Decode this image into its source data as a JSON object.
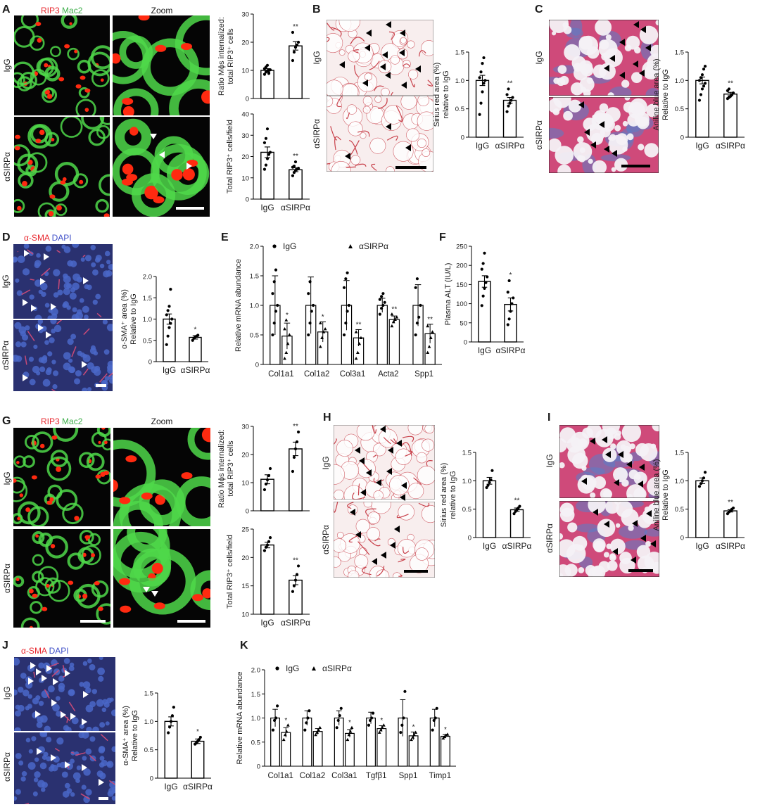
{
  "panels": {
    "A": {
      "letter": "A",
      "stain_parts": [
        "RIP3",
        "Mac2"
      ],
      "zoom": "Zoom",
      "row_labels": [
        "IgG",
        "αSIRPα"
      ]
    },
    "B": {
      "letter": "B",
      "row_labels": [
        "IgG",
        "αSIRPα"
      ]
    },
    "C": {
      "letter": "C",
      "row_labels": [
        "IgG",
        "αSIRPα"
      ]
    },
    "D": {
      "letter": "D",
      "stain_parts": [
        "α-SMA",
        "DAPI"
      ],
      "row_labels": [
        "IgG",
        "αSIRPα"
      ]
    },
    "E": {
      "letter": "E"
    },
    "F": {
      "letter": "F"
    },
    "G": {
      "letter": "G",
      "stain_parts": [
        "RIP3",
        "Mac2"
      ],
      "zoom": "Zoom",
      "row_labels": [
        "IgG",
        "αSIRPα"
      ]
    },
    "H": {
      "letter": "H",
      "row_labels": [
        "IgG",
        "αSIRPα"
      ]
    },
    "I": {
      "letter": "I",
      "row_labels": [
        "IgG",
        "αSIRPα"
      ]
    },
    "J": {
      "letter": "J",
      "stain_parts": [
        "α-SMA",
        "DAPI"
      ],
      "row_labels": [
        "IgG",
        "αSIRPα"
      ]
    },
    "K": {
      "letter": "K"
    }
  },
  "colors": {
    "red": "#e8262d",
    "green": "#3dae4a",
    "blue": "#3f4fc8",
    "text": "#1a1a1a",
    "fluor_bg": "#050505",
    "fluor_green": "#4fd84a",
    "fluor_red": "#ff2a10",
    "sirius_bg": "#f8eeee",
    "sirius_line": "#c8404a",
    "trichrome_bg": "#cf4a7a",
    "trichrome_blue": "#5a7ec8",
    "sma_bg": "#2a3170",
    "sma_nuc": "#4a67c8",
    "sma_red": "#c84a78"
  },
  "chart_data": [
    {
      "id": "A1",
      "type": "bar",
      "categories": [
        "IgG",
        "αSIRPα"
      ],
      "values": [
        10.0,
        18.7
      ],
      "errors": [
        0.6,
        1.5
      ],
      "points": [
        [
          8.6,
          9.4,
          9.8,
          10.0,
          10.2,
          10.6,
          11.2,
          11.8,
          8.9
        ],
        [
          13.5,
          16.5,
          18.2,
          19.0,
          20.0,
          23.5
        ]
      ],
      "ylabel_lines": [
        "Ratio Mϕs internalized:",
        "total RIP3⁺ cells"
      ],
      "ylim": [
        0,
        30
      ],
      "yticks": [
        0,
        10,
        20,
        30
      ],
      "significance": [
        "",
        "**"
      ],
      "markers": [
        "circle",
        "circle"
      ],
      "show_xlabels": false
    },
    {
      "id": "A2",
      "type": "bar",
      "categories": [
        "IgG",
        "αSIRPα"
      ],
      "values": [
        22.0,
        13.8
      ],
      "errors": [
        2.5,
        0.9
      ],
      "points": [
        [
          14.0,
          16.0,
          19.0,
          21.0,
          22.0,
          26.5,
          28.5,
          33.0
        ],
        [
          11.0,
          12.5,
          13.5,
          14.0,
          14.5,
          15.0,
          15.5,
          17.5
        ]
      ],
      "ylabel_lines": [
        "Total RIP3⁺ cells/field"
      ],
      "ylim": [
        0,
        40
      ],
      "yticks": [
        0,
        10,
        20,
        30,
        40
      ],
      "significance": [
        "",
        "**"
      ],
      "markers": [
        "circle",
        "circle"
      ],
      "show_xlabels": true
    },
    {
      "id": "B",
      "type": "bar",
      "categories": [
        "IgG",
        "αSIRPα"
      ],
      "values": [
        1.0,
        0.65
      ],
      "errors": [
        0.09,
        0.05
      ],
      "points": [
        [
          0.4,
          0.6,
          0.8,
          0.95,
          1.0,
          1.05,
          1.15,
          1.3,
          1.4
        ],
        [
          0.45,
          0.55,
          0.6,
          0.65,
          0.7,
          0.75,
          0.85
        ]
      ],
      "ylabel_lines": [
        "Sirius red area (%)",
        "relative to IgG"
      ],
      "ylim": [
        0,
        1.5
      ],
      "yticks": [
        0,
        0.5,
        1.0,
        1.5
      ],
      "significance": [
        "",
        "**"
      ],
      "markers": [
        "circle",
        "circle"
      ],
      "show_xlabels": true
    },
    {
      "id": "C",
      "type": "bar",
      "categories": [
        "IgG",
        "αSIRPα"
      ],
      "values": [
        1.0,
        0.76
      ],
      "errors": [
        0.06,
        0.03
      ],
      "points": [
        [
          0.65,
          0.75,
          0.85,
          0.9,
          0.95,
          1.0,
          1.05,
          1.1,
          1.2,
          1.25
        ],
        [
          0.68,
          0.7,
          0.72,
          0.75,
          0.78,
          0.82,
          0.85
        ]
      ],
      "ylabel_lines": [
        "Aniline blue area (%)",
        "Relative to IgG"
      ],
      "ylim": [
        0,
        1.5
      ],
      "yticks": [
        0,
        0.5,
        1.0,
        1.5
      ],
      "significance": [
        "",
        "**"
      ],
      "markers": [
        "circle",
        "circle"
      ],
      "show_xlabels": true
    },
    {
      "id": "D",
      "type": "bar",
      "categories": [
        "IgG",
        "αSIRPα"
      ],
      "values": [
        1.0,
        0.57
      ],
      "errors": [
        0.12,
        0.04
      ],
      "points": [
        [
          0.4,
          0.6,
          0.8,
          0.9,
          1.0,
          1.1,
          1.2,
          1.3,
          1.7
        ],
        [
          0.5,
          0.55,
          0.58,
          0.6,
          0.62
        ]
      ],
      "ylabel_lines": [
        "α-SMA⁺ area (%)",
        "Relative to IgG"
      ],
      "ylim": [
        0,
        2.0
      ],
      "yticks": [
        0,
        0.5,
        1.0,
        1.5,
        2.0
      ],
      "significance": [
        "",
        "*"
      ],
      "markers": [
        "circle",
        "circle"
      ],
      "show_xlabels": true
    },
    {
      "id": "E",
      "type": "bar",
      "categories": [
        "Col1a1",
        "Col1a2",
        "Col3a1",
        "Acta2",
        "Spp1"
      ],
      "series": [
        {
          "name": "IgG",
          "marker": "circle",
          "values": [
            1.0,
            1.0,
            1.0,
            1.0,
            1.0
          ],
          "errors": [
            0.5,
            0.48,
            0.42,
            0.12,
            0.35
          ],
          "points": [
            [
              0.5,
              0.7,
              0.9,
              1.0,
              1.2,
              1.4,
              1.6
            ],
            [
              0.5,
              0.7,
              0.9,
              1.0,
              1.2,
              1.4
            ],
            [
              0.5,
              0.7,
              0.9,
              1.0,
              1.3,
              1.45,
              1.55
            ],
            [
              0.85,
              0.95,
              1.0,
              1.05,
              1.1,
              1.15,
              1.2
            ],
            [
              0.5,
              0.7,
              0.8,
              1.0,
              1.3,
              1.45
            ]
          ]
        },
        {
          "name": "αSIRPα",
          "marker": "triangle",
          "values": [
            0.48,
            0.55,
            0.45,
            0.76,
            0.52
          ],
          "errors": [
            0.22,
            0.17,
            0.14,
            0.06,
            0.16
          ],
          "points": [
            [
              0.1,
              0.2,
              0.35,
              0.5,
              0.6,
              0.75
            ],
            [
              0.3,
              0.45,
              0.55,
              0.6,
              0.7
            ],
            [
              0.1,
              0.2,
              0.35,
              0.45,
              0.55
            ],
            [
              0.65,
              0.72,
              0.76,
              0.8,
              0.85
            ],
            [
              0.2,
              0.3,
              0.45,
              0.55,
              0.65
            ]
          ]
        }
      ],
      "ylabel_lines": [
        "Relative mRNA abundance"
      ],
      "ylim": [
        0,
        2.0
      ],
      "yticks": [
        0,
        0.5,
        1.0,
        1.5,
        2.0
      ],
      "significance": [
        "*",
        "*",
        "**",
        "**",
        "**"
      ],
      "legend_position": "top"
    },
    {
      "id": "F",
      "type": "bar",
      "categories": [
        "IgG",
        "αSIRPα"
      ],
      "values": [
        158,
        98
      ],
      "errors": [
        15,
        17
      ],
      "points": [
        [
          95,
          120,
          140,
          155,
          170,
          190,
          205,
          232
        ],
        [
          45,
          60,
          80,
          100,
          115,
          130,
          160
        ]
      ],
      "ylabel_lines": [
        "Plasma ALT (IU/L)"
      ],
      "ylim": [
        0,
        250
      ],
      "yticks": [
        0,
        50,
        100,
        150,
        200,
        250
      ],
      "significance": [
        "",
        "*"
      ],
      "markers": [
        "circle",
        "circle"
      ],
      "show_xlabels": true
    },
    {
      "id": "G1",
      "type": "bar",
      "categories": [
        "IgG",
        "αSIRPα"
      ],
      "values": [
        11.2,
        22.0
      ],
      "errors": [
        1.6,
        2.4
      ],
      "points": [
        [
          7.5,
          9.5,
          11.0,
          12.5,
          15.0
        ],
        [
          14.0,
          19.0,
          22.0,
          24.5,
          28.0
        ]
      ],
      "ylabel_lines": [
        "Ratio Mϕs internalized:",
        "total RIP3⁺ cells"
      ],
      "ylim": [
        0,
        30
      ],
      "yticks": [
        0,
        10,
        20,
        30
      ],
      "significance": [
        "",
        "**"
      ],
      "markers": [
        "circle",
        "circle"
      ],
      "show_xlabels": false
    },
    {
      "id": "G2",
      "type": "bar",
      "categories": [
        "IgG",
        "αSIRPα"
      ],
      "values": [
        22.2,
        16.0
      ],
      "errors": [
        0.5,
        0.8
      ],
      "points": [
        [
          21.2,
          21.8,
          22.2,
          22.8,
          23.5
        ],
        [
          14.0,
          15.0,
          16.0,
          17.0,
          18.5
        ]
      ],
      "ylabel_lines": [
        "Total RIP3⁺ cells/field"
      ],
      "ylim": [
        10,
        25
      ],
      "yticks": [
        10,
        15,
        20,
        25
      ],
      "significance": [
        "",
        "**"
      ],
      "markers": [
        "circle",
        "circle"
      ],
      "show_xlabels": true
    },
    {
      "id": "H",
      "type": "bar",
      "categories": [
        "IgG",
        "αSIRPα"
      ],
      "values": [
        1.0,
        0.49
      ],
      "errors": [
        0.06,
        0.03
      ],
      "points": [
        [
          0.88,
          0.92,
          0.97,
          1.02,
          1.18
        ],
        [
          0.42,
          0.46,
          0.49,
          0.52,
          0.55
        ]
      ],
      "ylabel_lines": [
        "Sirius red area (%)",
        "relative to IgG"
      ],
      "ylim": [
        0,
        1.5
      ],
      "yticks": [
        0,
        0.5,
        1.0,
        1.5
      ],
      "significance": [
        "",
        "**"
      ],
      "markers": [
        "circle",
        "circle"
      ],
      "show_xlabels": true
    },
    {
      "id": "I",
      "type": "bar",
      "categories": [
        "IgG",
        "αSIRPα"
      ],
      "values": [
        1.0,
        0.47
      ],
      "errors": [
        0.05,
        0.02
      ],
      "points": [
        [
          0.9,
          0.95,
          1.0,
          1.05,
          1.15
        ],
        [
          0.42,
          0.45,
          0.47,
          0.5,
          0.52
        ]
      ],
      "ylabel_lines": [
        "Aniline blue area (%)",
        "Relative to IgG"
      ],
      "ylim": [
        0,
        1.5
      ],
      "yticks": [
        0,
        0.5,
        1.0,
        1.5
      ],
      "significance": [
        "",
        "**"
      ],
      "markers": [
        "circle",
        "circle"
      ],
      "show_xlabels": true
    },
    {
      "id": "J",
      "type": "bar",
      "categories": [
        "IgG",
        "αSIRPα"
      ],
      "values": [
        1.0,
        0.65
      ],
      "errors": [
        0.08,
        0.04
      ],
      "points": [
        [
          0.8,
          0.9,
          1.0,
          1.1,
          1.25
        ],
        [
          0.6,
          0.62,
          0.65,
          0.68,
          0.72
        ]
      ],
      "ylabel_lines": [
        "α-SMA⁺ area (%)",
        "Relative to IgG"
      ],
      "ylim": [
        0,
        1.5
      ],
      "yticks": [
        0,
        0.5,
        1.0,
        1.5
      ],
      "significance": [
        "",
        "*"
      ],
      "markers": [
        "circle",
        "circle"
      ],
      "show_xlabels": true
    },
    {
      "id": "K",
      "type": "bar",
      "categories": [
        "Col1a1",
        "Col1a2",
        "Col3a1",
        "Tgfβ1",
        "Spp1",
        "Timp1"
      ],
      "series": [
        {
          "name": "IgG",
          "marker": "circle",
          "values": [
            1.0,
            1.0,
            1.0,
            1.0,
            1.0,
            1.0
          ],
          "errors": [
            0.18,
            0.15,
            0.15,
            0.12,
            0.38,
            0.18
          ],
          "points": [
            [
              0.75,
              0.95,
              1.0,
              1.25
            ],
            [
              0.75,
              0.9,
              1.0,
              1.15
            ],
            [
              0.8,
              0.95,
              1.05,
              1.2
            ],
            [
              0.85,
              0.95,
              1.0,
              1.1
            ],
            [
              0.7,
              0.85,
              1.0,
              1.55
            ],
            [
              0.75,
              0.95,
              1.0,
              1.2
            ]
          ]
        },
        {
          "name": "αSIRPα",
          "marker": "triangle",
          "values": [
            0.7,
            0.72,
            0.68,
            0.78,
            0.63,
            0.62
          ],
          "errors": [
            0.1,
            0.06,
            0.08,
            0.06,
            0.08,
            0.04
          ],
          "points": [
            [
              0.55,
              0.65,
              0.72,
              0.85
            ],
            [
              0.65,
              0.7,
              0.75,
              0.8
            ],
            [
              0.55,
              0.65,
              0.72,
              0.8
            ],
            [
              0.7,
              0.75,
              0.8,
              0.85
            ],
            [
              0.55,
              0.6,
              0.65,
              0.7
            ],
            [
              0.58,
              0.61,
              0.64,
              0.66
            ]
          ]
        }
      ],
      "ylabel_lines": [
        "Relative mRNA abundance"
      ],
      "ylim": [
        0,
        2.0
      ],
      "yticks": [
        0,
        0.5,
        1.0,
        1.5,
        2.0
      ],
      "significance": [
        "*",
        "",
        "*",
        "*",
        "*",
        "*"
      ],
      "legend_position": "top"
    }
  ]
}
